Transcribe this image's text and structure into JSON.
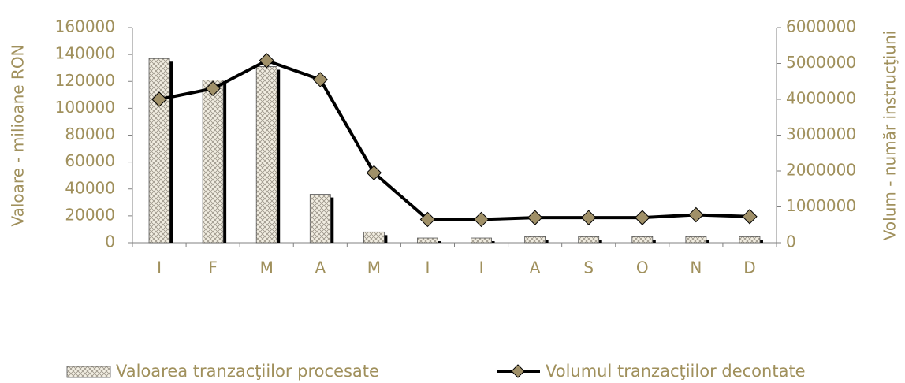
{
  "chart_data": {
    "type": "bar_line",
    "categories": [
      "I",
      "F",
      "M",
      "A",
      "M",
      "I",
      "I",
      "A",
      "S",
      "O",
      "N",
      "D"
    ],
    "ylabel": "Valoare - milioane RON",
    "y2label": "Volum - număr instrucţiuni",
    "ylim": [
      0,
      160000
    ],
    "yticks": [
      0,
      20000,
      40000,
      60000,
      80000,
      100000,
      120000,
      140000,
      160000
    ],
    "y2lim": [
      0,
      6000000
    ],
    "y2ticks": [
      0,
      1000000,
      2000000,
      3000000,
      4000000,
      5000000,
      6000000
    ],
    "series": [
      {
        "name": "Valoarea tranzacţiilor procesate",
        "type": "bar",
        "color": "#e8e0c8",
        "values": [
          137000,
          121000,
          131000,
          36000,
          8000,
          3500,
          3500,
          4500,
          4500,
          4500,
          4500,
          4500
        ]
      },
      {
        "name": "Volumul tranzacţiilor decontate",
        "type": "line",
        "axis": "y2",
        "color": "#000000",
        "marker_color": "#a09068",
        "values": [
          4000000,
          4300000,
          5080000,
          4550000,
          1950000,
          650000,
          650000,
          700000,
          700000,
          700000,
          780000,
          730000
        ]
      }
    ],
    "legend": "bottom"
  }
}
